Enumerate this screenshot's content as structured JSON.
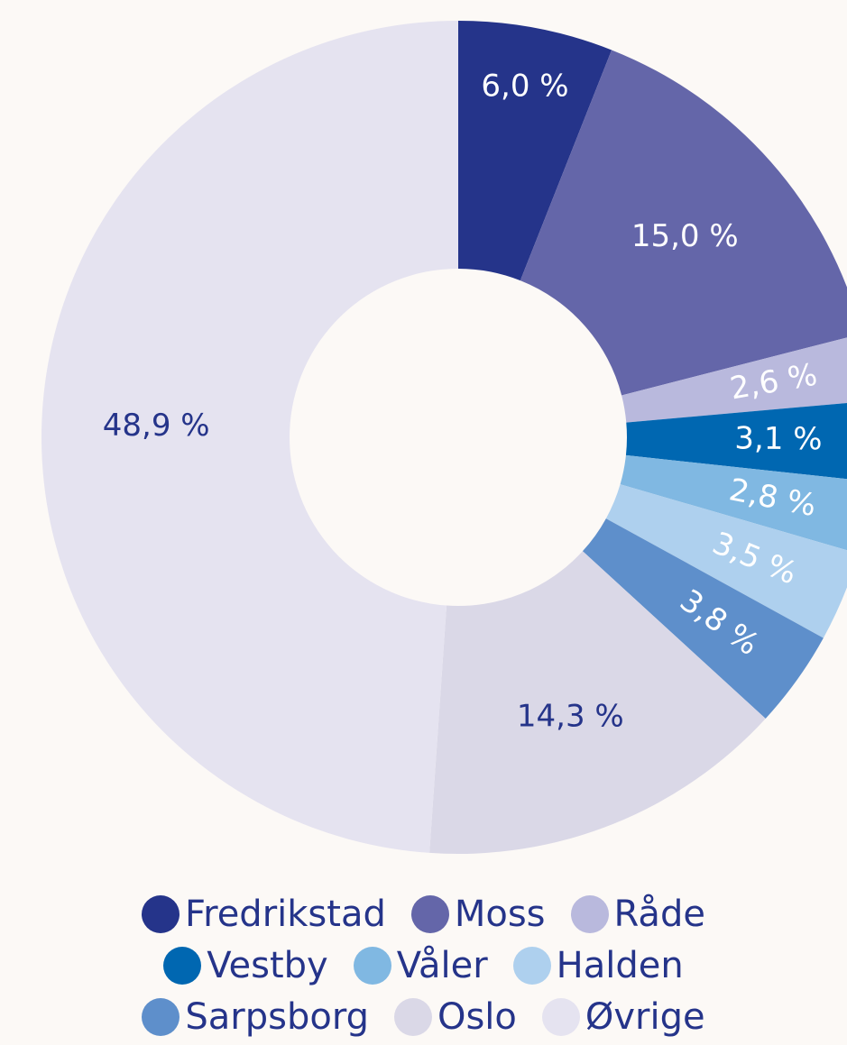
{
  "chart_data": {
    "type": "donut",
    "categories": [
      "Fredrikstad",
      "Moss",
      "Råde",
      "Vestby",
      "Våler",
      "Halden",
      "Sarpsborg",
      "Oslo",
      "Øvrige"
    ],
    "values": [
      6.0,
      15.0,
      2.6,
      3.1,
      2.8,
      3.5,
      3.8,
      14.3,
      48.9
    ],
    "value_labels": [
      "6,0 %",
      "15,0 %",
      "2,6 %",
      "3,1 %",
      "2,8 %",
      "3,5 %",
      "3,8 %",
      "14,3 %",
      "48,9 %"
    ],
    "colors": [
      "#25348a",
      "#6466a9",
      "#b9b9dd",
      "#0067b1",
      "#80b8e2",
      "#aed0ee",
      "#5e8fcb",
      "#dad8e7",
      "#e5e3f0"
    ],
    "label_colors": [
      "#ffffff",
      "#ffffff",
      "#ffffff",
      "#ffffff",
      "#ffffff",
      "#ffffff",
      "#ffffff",
      "#25348a",
      "#25348a"
    ]
  }
}
